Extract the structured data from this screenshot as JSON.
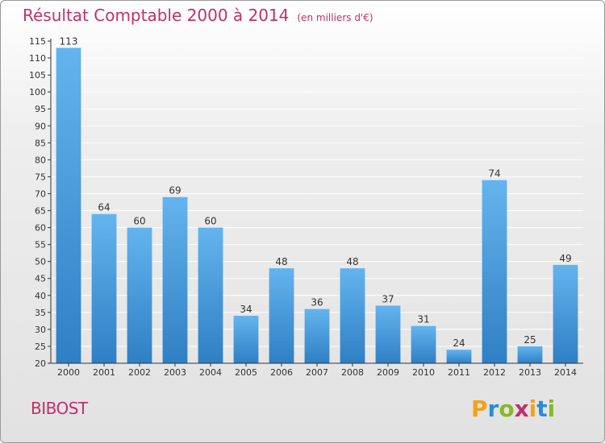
{
  "header": {
    "title": "Résultat Comptable 2000 à 2014",
    "unit": "(en milliers d'€)"
  },
  "commune": "BIBOST",
  "logo_text": "Proxiti",
  "colors": {
    "title": "#c0306a",
    "bar_top": "#63b4ee",
    "bar_bottom": "#2f7fc4",
    "axis": "#333333",
    "grid": "#ffffff"
  },
  "chart_data": {
    "type": "bar",
    "title": "Résultat Comptable 2000 à 2014",
    "ylabel": "en milliers d'€",
    "xlabel": "",
    "categories": [
      "2000",
      "2001",
      "2002",
      "2003",
      "2004",
      "2005",
      "2006",
      "2007",
      "2008",
      "2009",
      "2010",
      "2011",
      "2012",
      "2013",
      "2014"
    ],
    "values": [
      113,
      64,
      60,
      69,
      60,
      34,
      48,
      36,
      48,
      37,
      31,
      24,
      74,
      25,
      49
    ],
    "ylim": [
      20,
      115
    ],
    "ytick_step": 5,
    "grid": true
  }
}
